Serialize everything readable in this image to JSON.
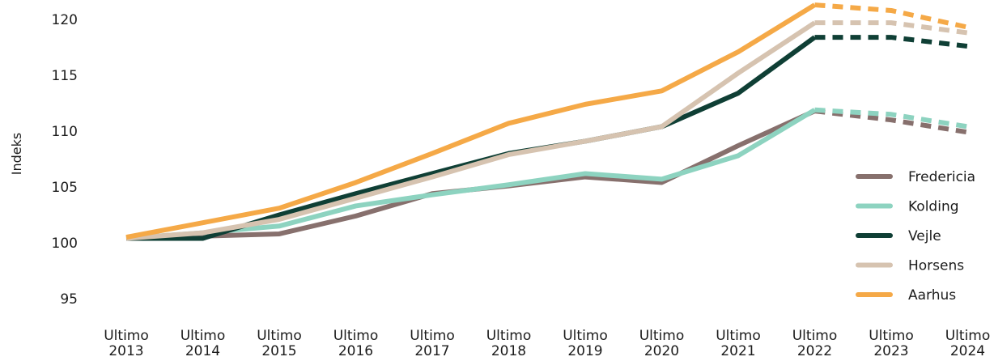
{
  "chart_data": {
    "type": "line",
    "title": "",
    "xlabel": "",
    "ylabel": "Indeks",
    "ylim": [
      92,
      121.5
    ],
    "yticks": [
      95,
      100,
      105,
      110,
      115,
      120
    ],
    "grid": false,
    "legend_position": "right",
    "categories": [
      [
        "Ultimo",
        "2013"
      ],
      [
        "Ultimo",
        "2014"
      ],
      [
        "Ultimo",
        "2015"
      ],
      [
        "Ultimo",
        "2016"
      ],
      [
        "Ultimo",
        "2017"
      ],
      [
        "Ultimo",
        "2018"
      ],
      [
        "Ultimo",
        "2019"
      ],
      [
        "Ultimo",
        "2020"
      ],
      [
        "Ultimo",
        "2021"
      ],
      [
        "Ultimo",
        "2022"
      ],
      [
        "Ultimo",
        "2023"
      ],
      [
        "Ultimo",
        "2024"
      ]
    ],
    "forecast_from_index": 9,
    "series": [
      {
        "name": "Fredericia",
        "color": "#87706d",
        "values": [
          100.4,
          100.6,
          100.8,
          102.4,
          104.4,
          105.1,
          105.9,
          105.4,
          108.7,
          111.8,
          111.0,
          109.9
        ]
      },
      {
        "name": "Kolding",
        "color": "#8dd3c0",
        "values": [
          100.4,
          100.9,
          101.5,
          103.3,
          104.3,
          105.2,
          106.2,
          105.7,
          107.8,
          111.9,
          111.5,
          110.4
        ]
      },
      {
        "name": "Vejle",
        "color": "#0f3f35",
        "values": [
          100.4,
          100.4,
          102.5,
          104.4,
          106.2,
          108.0,
          109.1,
          110.4,
          113.4,
          118.4,
          118.4,
          117.6
        ]
      },
      {
        "name": "Horsens",
        "color": "#d6c3b0",
        "values": [
          100.4,
          100.9,
          102.1,
          104.0,
          105.9,
          107.9,
          109.1,
          110.4,
          115.2,
          119.7,
          119.7,
          118.8
        ]
      },
      {
        "name": "Aarhus",
        "color": "#f5a947",
        "values": [
          100.5,
          101.8,
          103.1,
          105.4,
          108.0,
          110.7,
          112.4,
          113.6,
          117.1,
          121.3,
          120.8,
          119.3
        ]
      }
    ]
  }
}
